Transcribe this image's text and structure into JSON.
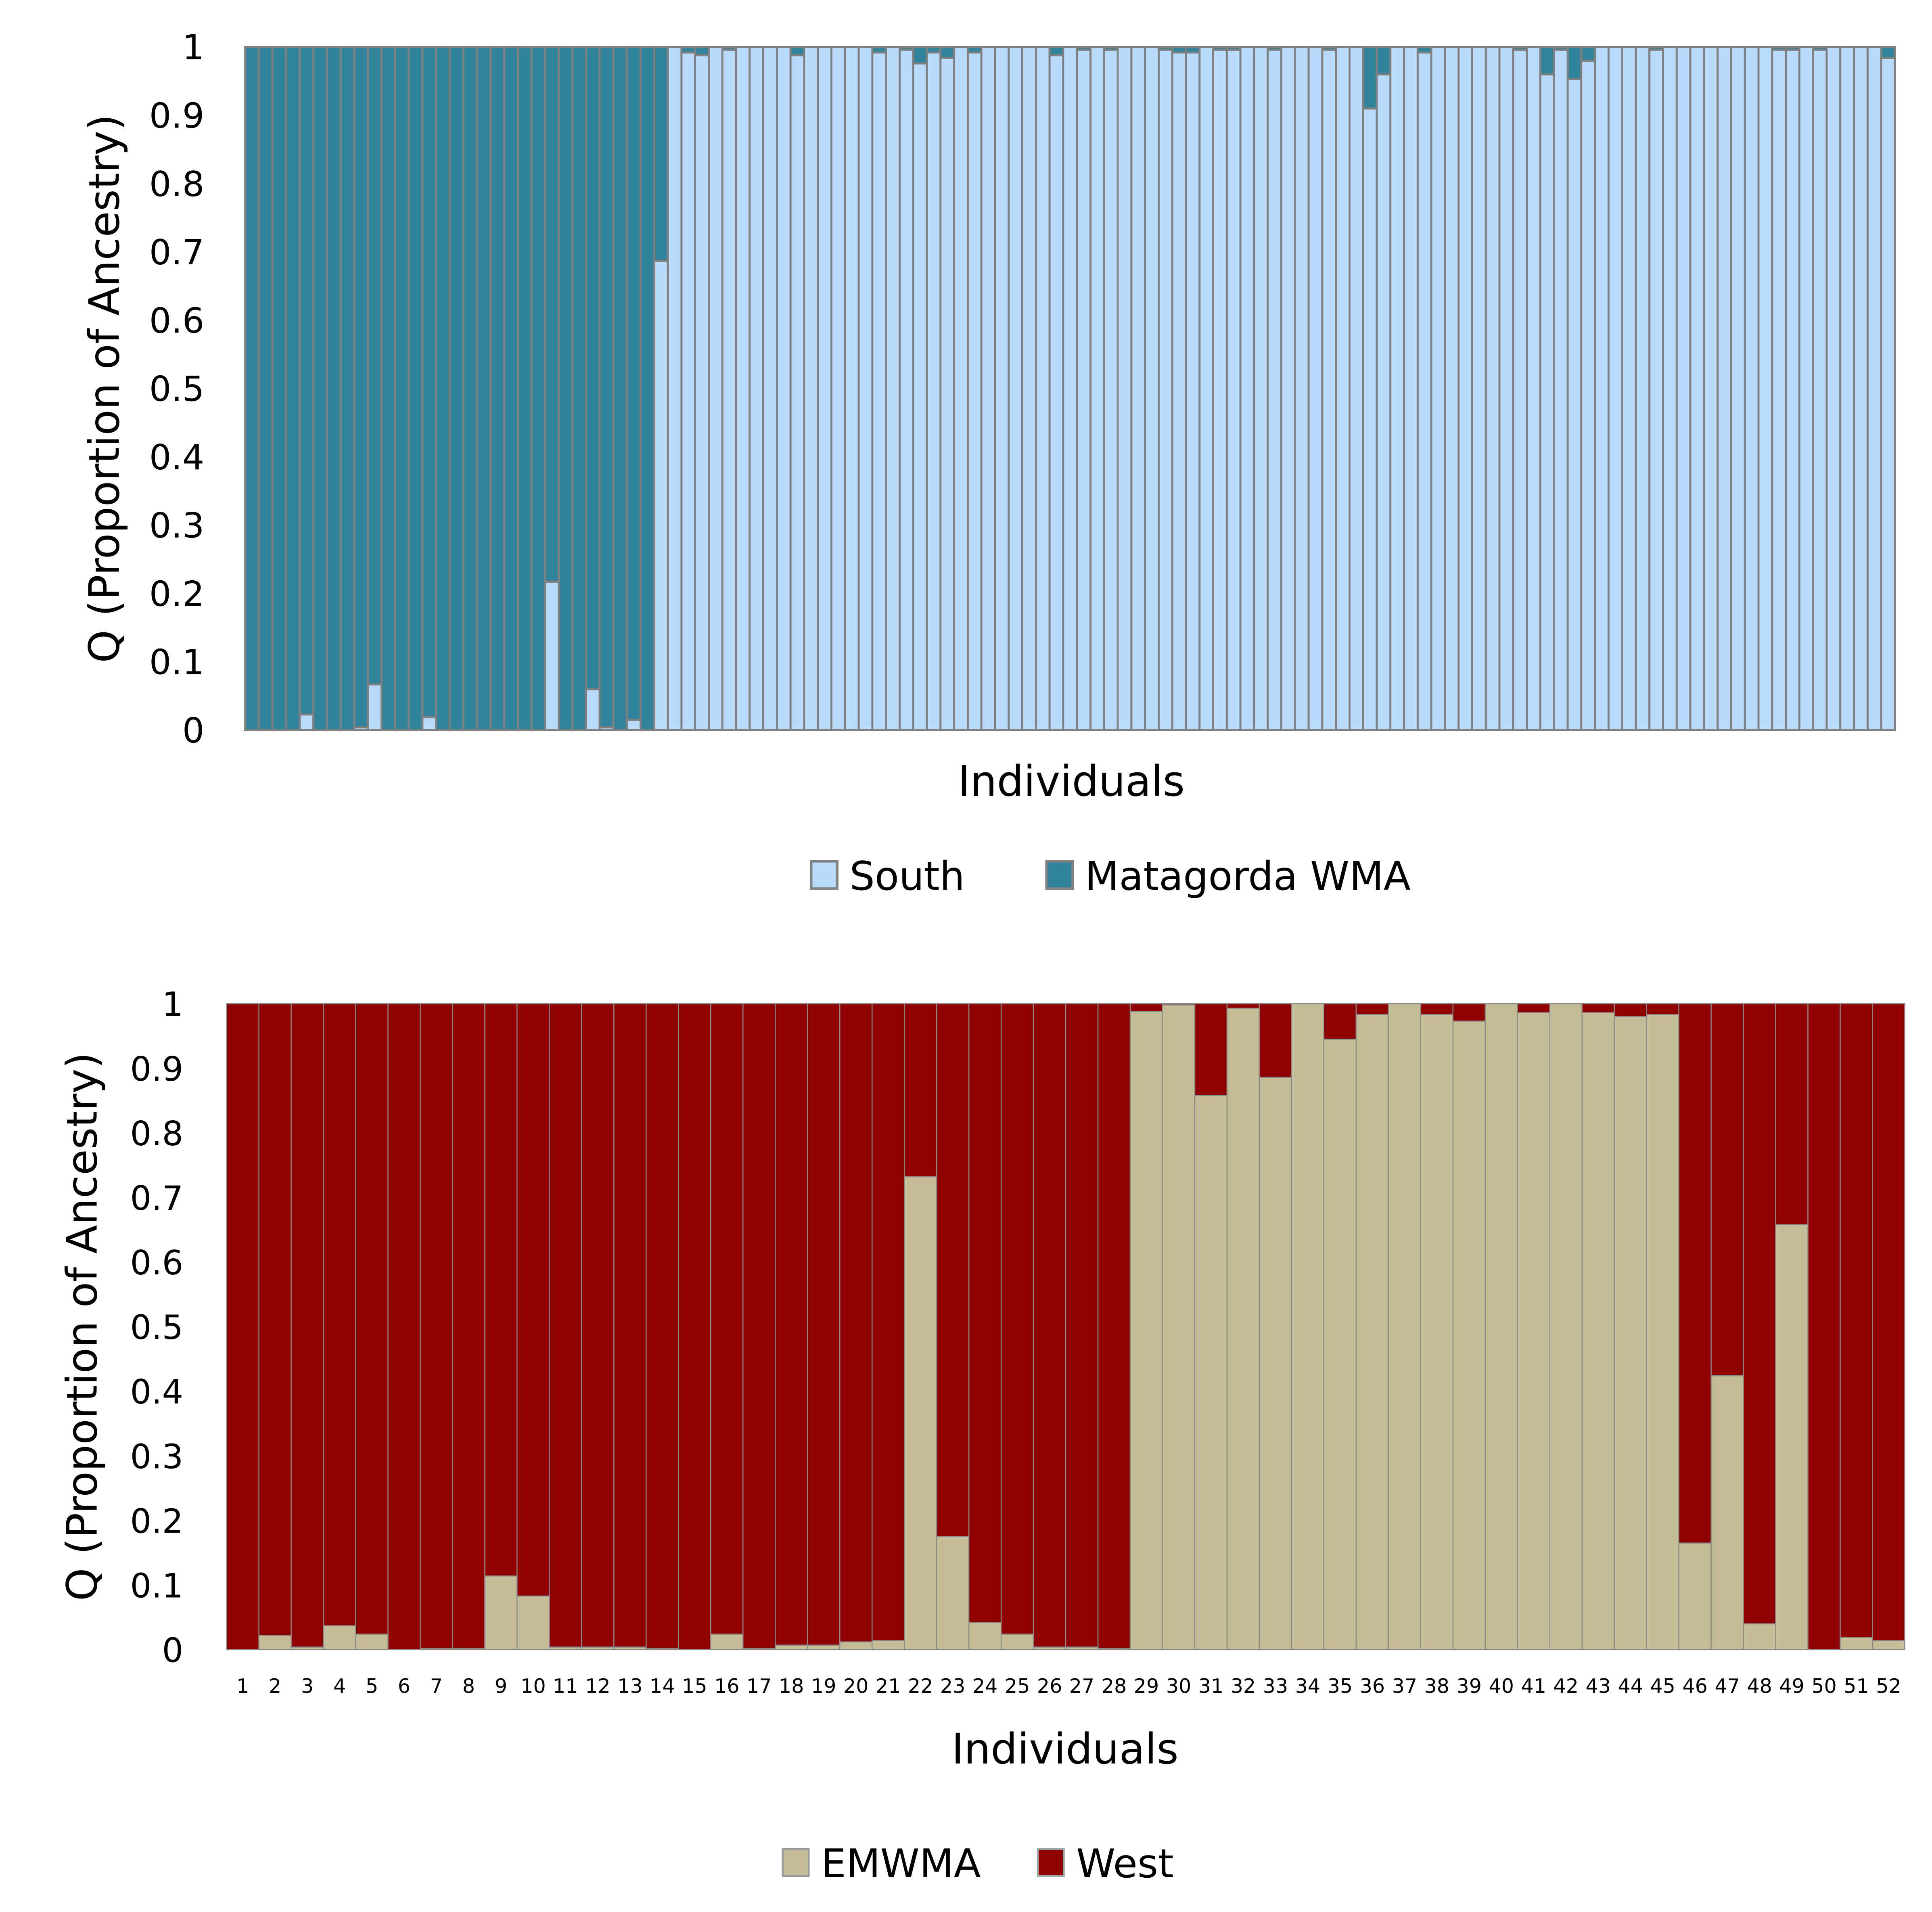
{
  "chart_data": [
    {
      "type": "bar",
      "stacked": true,
      "title": "",
      "xlabel": "Individuals",
      "ylabel": "Q (Proportion of Ancestry)",
      "ylim": [
        0,
        1
      ],
      "yticks": [
        "0",
        "0.1",
        "0.2",
        "0.3",
        "0.4",
        "0.5",
        "0.6",
        "0.7",
        "0.8",
        "0.9",
        "1"
      ],
      "grid": false,
      "legend_position": "bottom",
      "series": [
        {
          "name": "South",
          "color": "#b9dcfc",
          "values": [
            0,
            0,
            0,
            0,
            0.023,
            0,
            0,
            0,
            0.004,
            0.067,
            0,
            0,
            0,
            0.019,
            0,
            0,
            0,
            0,
            0,
            0,
            0,
            0,
            0.217,
            0,
            0,
            0.06,
            0.004,
            0,
            0.015,
            0,
            0.687,
            1,
            0.992,
            0.988,
            1,
            0.996,
            1,
            1,
            1,
            1,
            0.988,
            1,
            1,
            1,
            1,
            1,
            0.992,
            1,
            0.996,
            0.976,
            0.992,
            0.984,
            1,
            0.992,
            1,
            1,
            1,
            1,
            1,
            0.988,
            1,
            0.996,
            1,
            0.996,
            1,
            1,
            1,
            0.996,
            0.992,
            0.992,
            1,
            0.996,
            0.996,
            1,
            1,
            0.996,
            1,
            1,
            1,
            0.996,
            1,
            1,
            0.91,
            0.96,
            1,
            1,
            0.992,
            1,
            1,
            1,
            1,
            1,
            1,
            0.996,
            1,
            0.96,
            0.996,
            0.953,
            0.98,
            1,
            1,
            1,
            1,
            0.996,
            1,
            1,
            1,
            1,
            1,
            1,
            1,
            1,
            0.996,
            0.996,
            1,
            0.996,
            1,
            1,
            1,
            1,
            0.984
          ]
        },
        {
          "name": "Matagorda WMA",
          "color": "#31849b",
          "values": [
            1,
            1,
            1,
            1,
            0.977,
            1,
            1,
            1,
            0.996,
            0.933,
            1,
            1,
            1,
            0.981,
            1,
            1,
            1,
            1,
            1,
            1,
            1,
            1,
            0.783,
            1,
            1,
            0.94,
            0.996,
            1,
            0.985,
            1,
            0.313,
            0,
            0.008,
            0.012,
            0,
            0.004,
            0,
            0,
            0,
            0,
            0.012,
            0,
            0,
            0,
            0,
            0,
            0.008,
            0,
            0.004,
            0.024,
            0.008,
            0.016,
            0,
            0.008,
            0,
            0,
            0,
            0,
            0,
            0.012,
            0,
            0.004,
            0,
            0.004,
            0,
            0,
            0,
            0.004,
            0.008,
            0.008,
            0,
            0.004,
            0.004,
            0,
            0,
            0.004,
            0,
            0,
            0,
            0.004,
            0,
            0,
            0.09,
            0.04,
            0,
            0,
            0.008,
            0,
            0,
            0,
            0,
            0,
            0,
            0.004,
            0,
            0.04,
            0.004,
            0.047,
            0.02,
            0,
            0,
            0,
            0,
            0.004,
            0,
            0,
            0,
            0,
            0,
            0,
            0,
            0,
            0.004,
            0.004,
            0,
            0.004,
            0,
            0,
            0,
            0,
            0.016
          ]
        }
      ]
    },
    {
      "type": "bar",
      "stacked": true,
      "title": "",
      "xlabel": "Individuals",
      "ylabel": "Q (Proportion of Ancestry)",
      "ylim": [
        0,
        1
      ],
      "yticks": [
        "0",
        "0.1",
        "0.2",
        "0.3",
        "0.4",
        "0.5",
        "0.6",
        "0.7",
        "0.8",
        "0.9",
        "1"
      ],
      "grid": false,
      "legend_position": "bottom",
      "categories": [
        "1",
        "2",
        "3",
        "4",
        "5",
        "6",
        "7",
        "8",
        "9",
        "10",
        "11",
        "12",
        "13",
        "14",
        "15",
        "16",
        "17",
        "18",
        "19",
        "20",
        "21",
        "22",
        "23",
        "24",
        "25",
        "26",
        "27",
        "28",
        "29",
        "30",
        "31",
        "32",
        "33",
        "34",
        "35",
        "36",
        "37",
        "38",
        "39",
        "40",
        "41",
        "42",
        "43",
        "44",
        "45",
        "46",
        "47",
        "48",
        "49",
        "50",
        "51",
        "52"
      ],
      "series": [
        {
          "name": "EMWMA",
          "color": "#c4bd97",
          "values": [
            0,
            0.022,
            0.004,
            0.037,
            0.024,
            0,
            0.002,
            0.002,
            0.114,
            0.083,
            0.004,
            0.004,
            0.004,
            0.002,
            0,
            0.024,
            0.002,
            0.007,
            0.007,
            0.012,
            0.014,
            0.732,
            0.175,
            0.042,
            0.024,
            0.004,
            0.004,
            0.002,
            0.988,
            0.998,
            0.858,
            0.993,
            0.886,
            1,
            0.945,
            0.983,
            1,
            0.983,
            0.973,
            1,
            0.986,
            1,
            0.986,
            0.98,
            0.983,
            0.165,
            0.424,
            0.04,
            0.658,
            0,
            0.019,
            0.014
          ]
        },
        {
          "name": "West",
          "color": "#8f0000",
          "values": [
            1,
            0.978,
            0.996,
            0.963,
            0.976,
            1,
            0.998,
            0.998,
            0.886,
            0.917,
            0.996,
            0.996,
            0.996,
            0.998,
            1,
            0.976,
            0.998,
            0.993,
            0.993,
            0.988,
            0.986,
            0.268,
            0.825,
            0.958,
            0.976,
            0.996,
            0.996,
            0.998,
            0.012,
            0.002,
            0.142,
            0.007,
            0.114,
            0,
            0.055,
            0.017,
            0,
            0.017,
            0.027,
            0,
            0.014,
            0,
            0.014,
            0.02,
            0.017,
            0.835,
            0.576,
            0.96,
            0.342,
            1,
            0.981,
            0.986
          ]
        }
      ]
    }
  ]
}
